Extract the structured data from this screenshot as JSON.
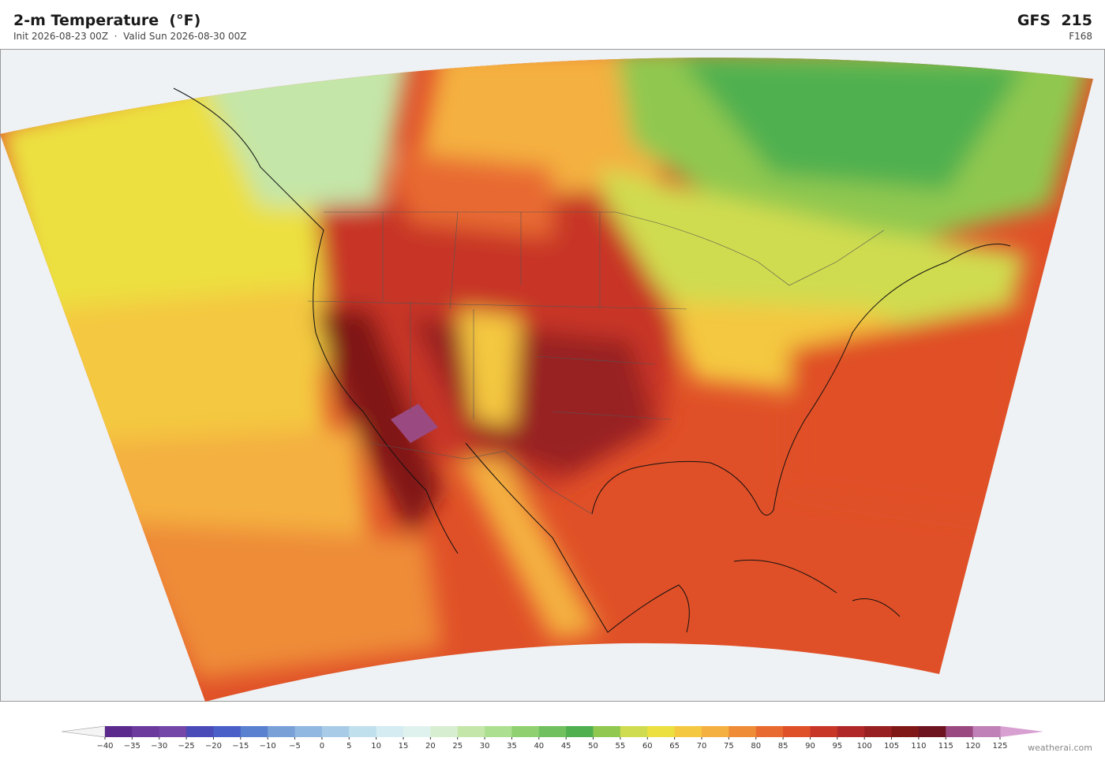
{
  "header": {
    "title": "2-m Temperature  (°F)",
    "subtitle": "Init 2026-08-23 00Z  ·  Valid Sun 2026-08-30 00Z",
    "model": "GFS  215",
    "forecast_hour": "F168"
  },
  "colorbar": {
    "ticks": [
      "−40",
      "−35",
      "−30",
      "−25",
      "−20",
      "−15",
      "−10",
      "−5",
      "0",
      "5",
      "10",
      "15",
      "20",
      "25",
      "30",
      "35",
      "40",
      "45",
      "50",
      "55",
      "60",
      "65",
      "70",
      "75",
      "80",
      "85",
      "90",
      "95",
      "100",
      "105",
      "110",
      "115",
      "120",
      "125"
    ],
    "colors": [
      "#5b2a8c",
      "#6b3a9c",
      "#7446a8",
      "#4a4ab8",
      "#4a60c8",
      "#5a80d0",
      "#7aa0d8",
      "#90b8e0",
      "#a8cce8",
      "#c0e0ee",
      "#d4ecf2",
      "#e0f2ee",
      "#d8eed0",
      "#c4e6a8",
      "#ace090",
      "#90d070",
      "#70c060",
      "#50b050",
      "#90c850",
      "#d0dc50",
      "#ece040",
      "#f4c840",
      "#f4b040",
      "#ee8c38",
      "#e86a30",
      "#e05028",
      "#c83628",
      "#b02828",
      "#982020",
      "#801818",
      "#6e1420",
      "#9a4a80",
      "#c080b8"
    ],
    "under_color": "#f4f4f4",
    "over_color": "#d8a0d0"
  },
  "credit": "weatherai.com"
}
